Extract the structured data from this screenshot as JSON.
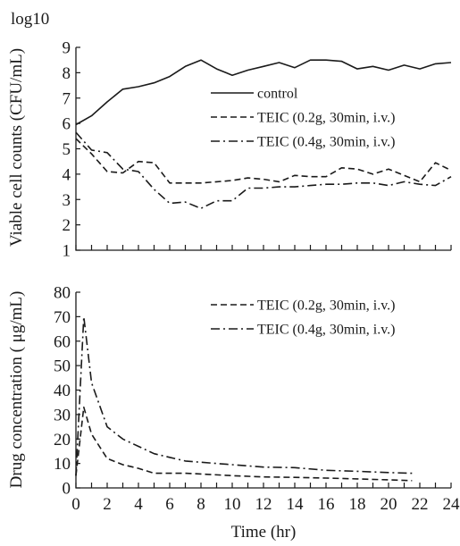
{
  "chart_data": [
    {
      "type": "line",
      "title": "",
      "xlabel": "",
      "ylabel": "Viable cell counts (CFU/mL)",
      "yunit": "log10",
      "xlim": [
        0,
        24
      ],
      "ylim": [
        1,
        9
      ],
      "yticks": [
        1,
        2,
        3,
        4,
        5,
        6,
        7,
        8,
        9
      ],
      "grid": false,
      "legend_position": "top-right",
      "series": [
        {
          "name": "control",
          "dash": "solid",
          "x": [
            0,
            1,
            2,
            3,
            4,
            5,
            6,
            7,
            8,
            9,
            10,
            11,
            12,
            13,
            14,
            15,
            16,
            17,
            18,
            19,
            20,
            21,
            22,
            23,
            24
          ],
          "values": [
            5.95,
            6.3,
            6.85,
            7.35,
            7.45,
            7.6,
            7.85,
            8.25,
            8.5,
            8.15,
            7.9,
            8.1,
            8.25,
            8.4,
            8.2,
            8.5,
            8.5,
            8.45,
            8.15,
            8.25,
            8.1,
            8.3,
            8.15,
            8.35,
            8.4
          ]
        },
        {
          "name": "TEIC (0.2g, 30min, i.v.)",
          "dash": "dashed",
          "x": [
            0,
            1,
            2,
            3,
            4,
            5,
            6,
            7,
            8,
            9,
            10,
            11,
            12,
            13,
            14,
            15,
            16,
            17,
            18,
            19,
            20,
            21,
            22,
            23,
            24
          ],
          "values": [
            5.4,
            4.8,
            4.1,
            4.05,
            4.5,
            4.45,
            3.65,
            3.65,
            3.65,
            3.7,
            3.75,
            3.85,
            3.8,
            3.7,
            3.95,
            3.9,
            3.9,
            4.25,
            4.2,
            4.0,
            4.2,
            3.95,
            3.7,
            4.45,
            4.15
          ]
        },
        {
          "name": "TEIC (0.4g, 30min, i.v.)",
          "dash": "dashdot",
          "x": [
            0,
            1,
            2,
            3,
            4,
            5,
            6,
            7,
            8,
            9,
            10,
            11,
            12,
            13,
            14,
            15,
            16,
            17,
            18,
            19,
            20,
            21,
            22,
            23,
            24
          ],
          "values": [
            5.65,
            4.95,
            4.85,
            4.2,
            4.1,
            3.4,
            2.85,
            2.9,
            2.65,
            2.95,
            2.95,
            3.45,
            3.45,
            3.5,
            3.5,
            3.55,
            3.6,
            3.6,
            3.65,
            3.65,
            3.55,
            3.7,
            3.6,
            3.55,
            3.9
          ]
        }
      ]
    },
    {
      "type": "line",
      "title": "",
      "xlabel": "Time (hr)",
      "ylabel": "Drug concentration ( μg/mL)",
      "xlim": [
        0,
        24
      ],
      "ylim": [
        0,
        80
      ],
      "xticks": [
        0,
        2,
        4,
        6,
        8,
        10,
        12,
        14,
        16,
        18,
        20,
        22,
        24
      ],
      "yticks": [
        0,
        10,
        20,
        30,
        40,
        50,
        60,
        70,
        80
      ],
      "grid": false,
      "legend_position": "top-right",
      "series": [
        {
          "name": "TEIC (0.2g, 30min, i.v.)",
          "dash": "dashed",
          "x": [
            0,
            0.5,
            1,
            2,
            3,
            4,
            5,
            6,
            7,
            8,
            10,
            12,
            14,
            16,
            18,
            20,
            21.5
          ],
          "values": [
            5,
            33,
            22,
            12,
            9.5,
            8,
            6,
            6,
            6,
            5.7,
            5,
            4.5,
            4.3,
            4,
            3.7,
            3.3,
            3
          ]
        },
        {
          "name": "TEIC (0.4g, 30min, i.v.)",
          "dash": "dashdot",
          "x": [
            0,
            0.5,
            1,
            2,
            3,
            4,
            5,
            6,
            7,
            8,
            10,
            12,
            14,
            16,
            18,
            20,
            21.5
          ],
          "values": [
            5,
            70,
            43,
            25,
            20,
            17,
            14,
            12.5,
            11,
            10.5,
            9.5,
            8.5,
            8.3,
            7.2,
            6.8,
            6.3,
            6
          ]
        }
      ]
    }
  ]
}
